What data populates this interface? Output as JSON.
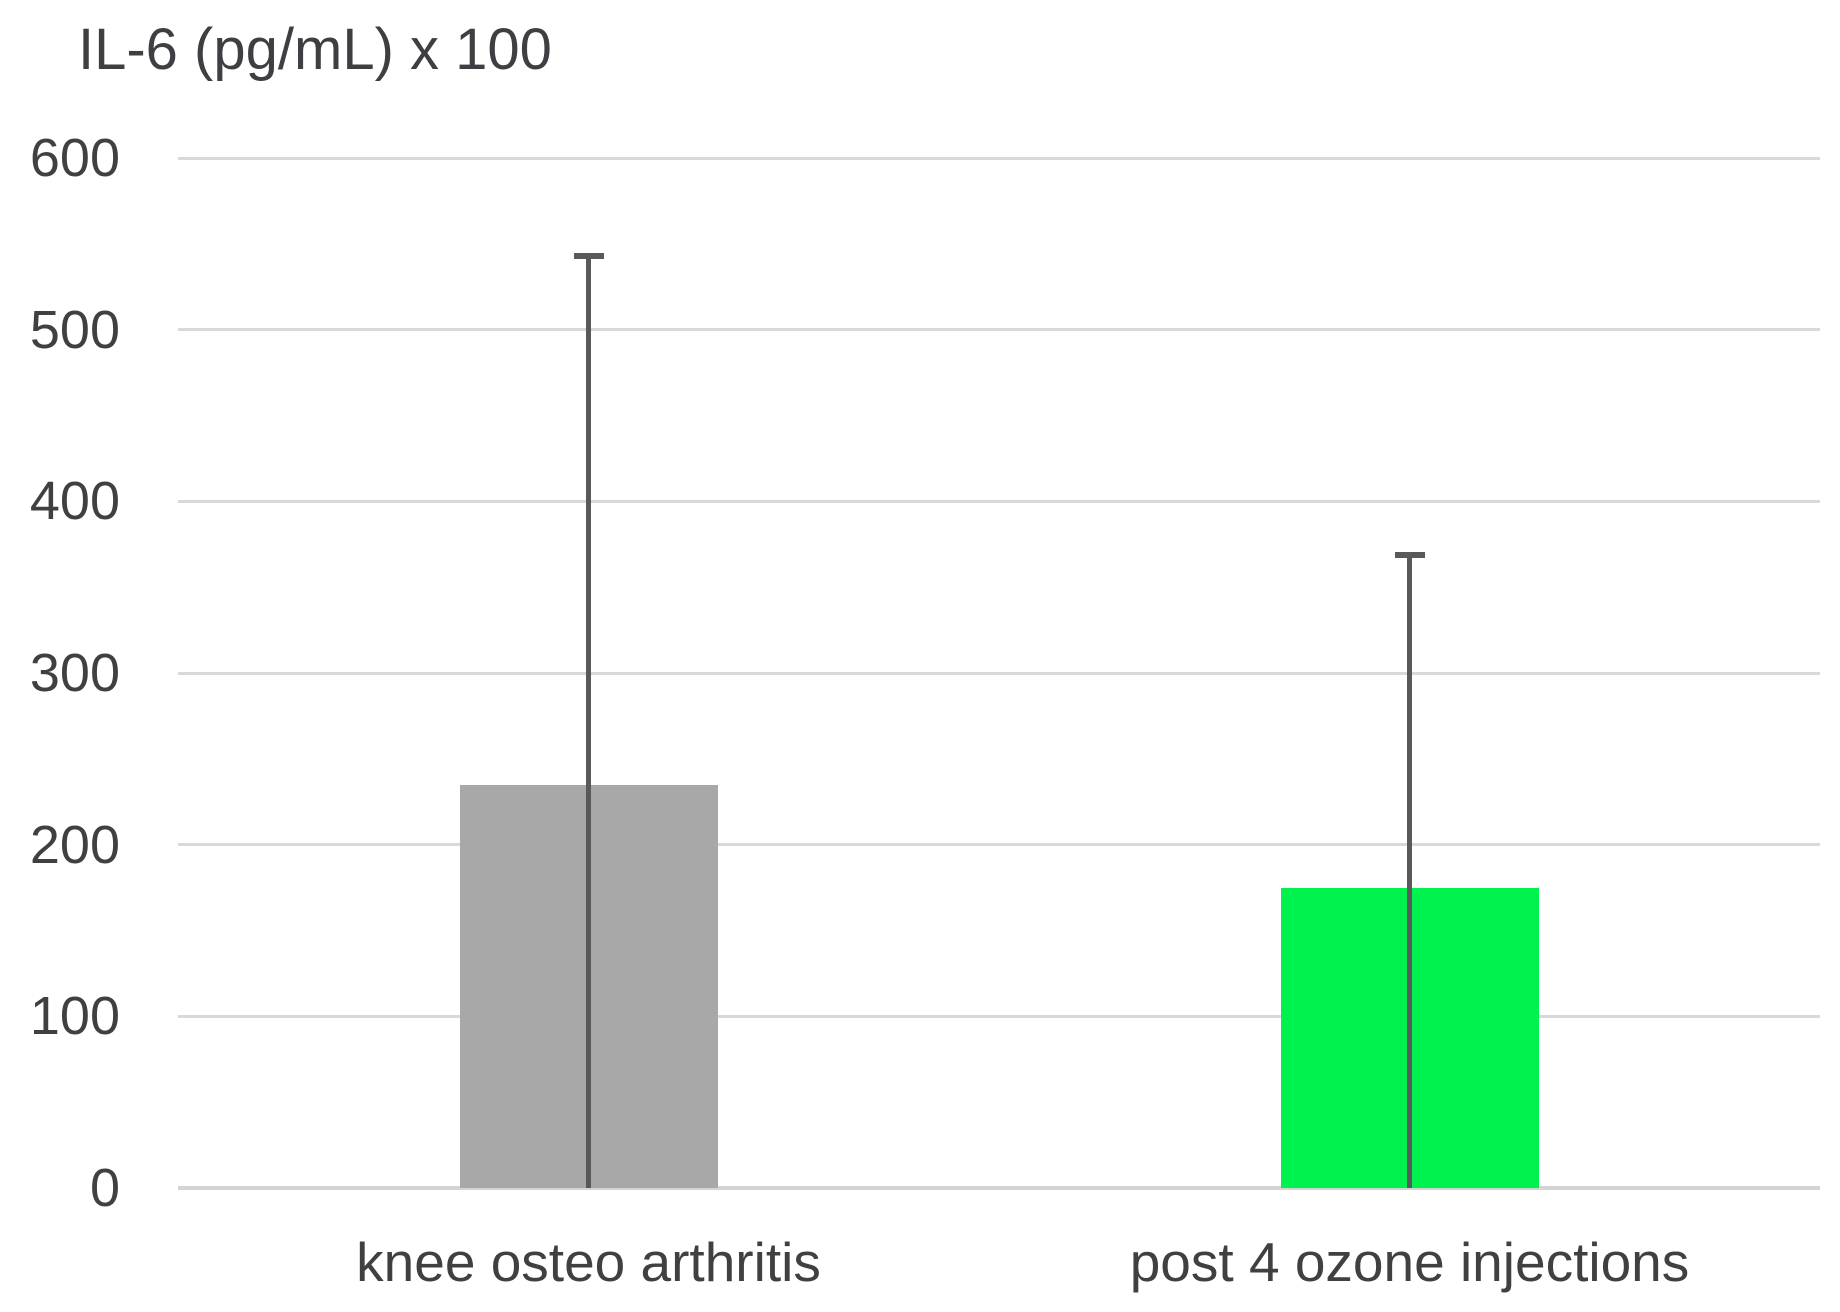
{
  "chart_data": {
    "type": "bar",
    "title": "IL-6 (pg/mL) x 100",
    "categories": [
      "knee osteo arthritis",
      "post 4 ozone injections"
    ],
    "values": [
      235,
      175
    ],
    "error_top": [
      543,
      369
    ],
    "error_bottom": [
      0,
      0
    ],
    "ylim": [
      0,
      600
    ],
    "yticks": [
      600,
      500,
      400,
      300,
      200,
      100,
      0
    ],
    "xlabel": "",
    "ylabel": "",
    "grid": true,
    "legend": false,
    "bar_colors": [
      "#A8A8A8",
      "#00F24E"
    ],
    "colors": {
      "grid": "#D9D9D9",
      "axis": "#D4D4D4",
      "text": "#404040",
      "title_text": "#3D3F42",
      "error_bar": "#595959",
      "background": "#FFFFFF"
    }
  }
}
